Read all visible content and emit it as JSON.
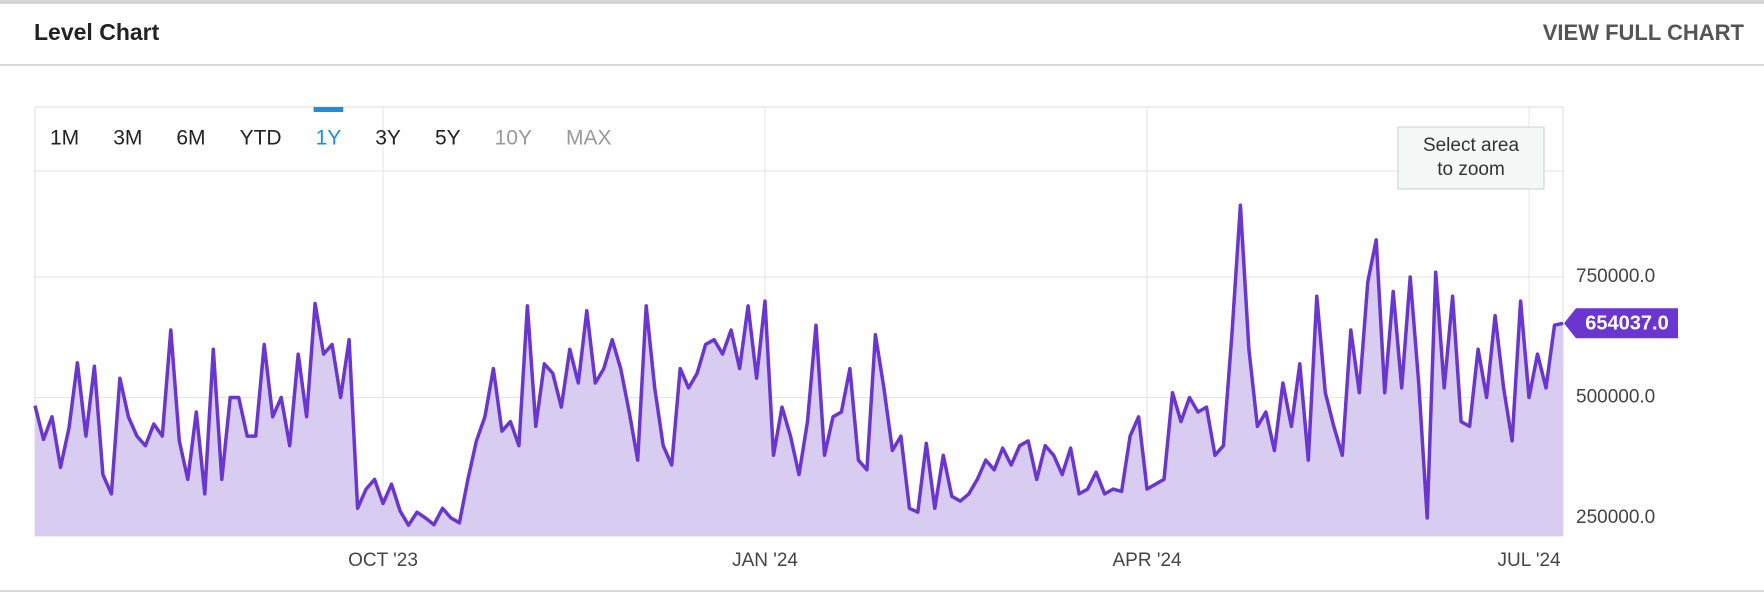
{
  "header": {
    "title": "Level Chart",
    "link": "VIEW FULL CHART"
  },
  "range_buttons": [
    "1M",
    "3M",
    "6M",
    "YTD",
    "1Y",
    "3Y",
    "5Y",
    "10Y",
    "MAX"
  ],
  "active_range": 4,
  "disabled_ranges": [
    7,
    8
  ],
  "zoom_hint": [
    "Select area",
    "to zoom"
  ],
  "chart_data": {
    "type": "area",
    "categories": [
      null,
      null,
      null,
      null,
      null,
      null,
      null,
      null,
      null,
      null,
      null,
      null,
      null,
      null,
      null,
      null,
      null,
      null,
      null,
      null,
      null,
      null,
      null,
      null,
      null,
      null,
      null,
      null,
      null,
      null,
      null,
      null,
      null,
      null,
      null,
      null,
      null,
      null,
      null,
      null,
      null,
      "OCT '23",
      null,
      null,
      null,
      null,
      null,
      null,
      null,
      null,
      null,
      null,
      null,
      null,
      null,
      null,
      null,
      null,
      null,
      null,
      null,
      null,
      null,
      null,
      null,
      null,
      null,
      null,
      null,
      null,
      null,
      null,
      null,
      null,
      null,
      null,
      null,
      null,
      null,
      null,
      null,
      null,
      null,
      null,
      null,
      null,
      "JAN '24",
      null,
      null,
      null,
      null,
      null,
      null,
      null,
      null,
      null,
      null,
      null,
      null,
      null,
      null,
      null,
      null,
      null,
      null,
      null,
      null,
      null,
      null,
      null,
      null,
      null,
      null,
      null,
      null,
      null,
      null,
      null,
      null,
      null,
      null,
      null,
      null,
      null,
      null,
      null,
      null,
      null,
      null,
      null,
      null,
      "APR '24",
      null,
      null,
      null,
      null,
      null,
      null,
      null,
      null,
      null,
      null,
      null,
      null,
      null,
      null,
      null,
      null,
      null,
      null,
      null,
      null,
      null,
      null,
      null,
      null,
      null,
      null,
      null,
      null,
      null,
      null,
      null,
      null,
      null,
      null,
      null,
      null,
      null,
      null,
      null,
      null,
      null,
      null,
      null,
      null,
      "JUL '24",
      null,
      null,
      null,
      null
    ],
    "series": [
      {
        "color": "#6a36cf",
        "fill": "#d8ccf1",
        "values": [
          483000,
          413000,
          460000,
          355000,
          437000,
          572000,
          420000,
          565000,
          340000,
          300000,
          540000,
          460000,
          420000,
          400000,
          445000,
          420000,
          640000,
          410000,
          330000,
          470000,
          300000,
          600000,
          330000,
          500000,
          500000,
          420000,
          420000,
          610000,
          460000,
          500000,
          400000,
          590000,
          460000,
          695000,
          590000,
          610000,
          500000,
          620000,
          270000,
          310000,
          330000,
          280000,
          320000,
          265000,
          235000,
          262000,
          250000,
          236000,
          270000,
          250000,
          240000,
          330000,
          410000,
          460000,
          560000,
          430000,
          450000,
          400000,
          690000,
          440000,
          570000,
          550000,
          480000,
          600000,
          530000,
          680000,
          530000,
          560000,
          620000,
          560000,
          470000,
          370000,
          690000,
          520000,
          400000,
          360000,
          560000,
          520000,
          550000,
          610000,
          620000,
          590000,
          640000,
          560000,
          690000,
          540000,
          700000,
          380000,
          480000,
          420000,
          340000,
          450000,
          650000,
          380000,
          460000,
          470000,
          560000,
          370000,
          350000,
          630000,
          520000,
          390000,
          420000,
          270000,
          262000,
          405000,
          270000,
          380000,
          295000,
          285000,
          300000,
          330000,
          370000,
          350000,
          395000,
          360000,
          400000,
          410000,
          330000,
          400000,
          380000,
          340000,
          395000,
          300000,
          310000,
          345000,
          300000,
          310000,
          305000,
          420000,
          460000,
          310000,
          320000,
          330000,
          510000,
          450000,
          500000,
          470000,
          480000,
          380000,
          400000,
          630000,
          899000,
          600000,
          440000,
          470000,
          390000,
          530000,
          440000,
          570000,
          370000,
          710000,
          510000,
          440000,
          380000,
          640000,
          510000,
          740000,
          827000,
          510000,
          720000,
          520000,
          750000,
          530000,
          250000,
          760000,
          520000,
          710000,
          450000,
          440000,
          600000,
          500000,
          670000,
          520000,
          410000,
          700000,
          500000,
          590000,
          520000,
          650000,
          654037
        ]
      }
    ],
    "current_value": {
      "value": 654037,
      "label": "654037.0"
    },
    "ylim": [
      212600,
      1102800
    ],
    "yticks": [
      {
        "value": 250000,
        "label": "250000.0"
      },
      {
        "value": 500000,
        "label": "500000.0"
      },
      {
        "value": 750000,
        "label": "750000.0"
      }
    ],
    "grid": true
  }
}
